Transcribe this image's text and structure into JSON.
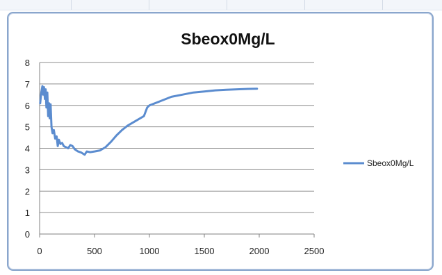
{
  "chart_data": {
    "type": "line",
    "title": "Sbeox0Mg/L",
    "xlabel": "",
    "ylabel": "",
    "xlim": [
      0,
      2500
    ],
    "ylim": [
      0,
      8
    ],
    "x_ticks": [
      0,
      500,
      1000,
      1500,
      2000,
      2500
    ],
    "y_ticks": [
      0,
      1,
      2,
      3,
      4,
      5,
      6,
      7,
      8
    ],
    "grid": "horizontal",
    "legend_position": "right",
    "color": "#5b8ccf",
    "series": [
      {
        "name": "Sbeox0Mg/L",
        "points": [
          [
            5,
            6.1
          ],
          [
            15,
            6.6
          ],
          [
            25,
            6.9
          ],
          [
            32,
            6.5
          ],
          [
            40,
            6.85
          ],
          [
            48,
            6.3
          ],
          [
            55,
            6.75
          ],
          [
            62,
            5.9
          ],
          [
            70,
            6.6
          ],
          [
            78,
            5.5
          ],
          [
            86,
            6.1
          ],
          [
            92,
            5.4
          ],
          [
            100,
            6.05
          ],
          [
            108,
            5.0
          ],
          [
            118,
            4.7
          ],
          [
            130,
            4.85
          ],
          [
            142,
            4.45
          ],
          [
            155,
            4.55
          ],
          [
            165,
            4.1
          ],
          [
            175,
            4.4
          ],
          [
            190,
            4.2
          ],
          [
            205,
            4.25
          ],
          [
            220,
            4.1
          ],
          [
            240,
            4.05
          ],
          [
            260,
            4.0
          ],
          [
            280,
            4.15
          ],
          [
            300,
            4.1
          ],
          [
            320,
            3.95
          ],
          [
            350,
            3.85
          ],
          [
            380,
            3.8
          ],
          [
            410,
            3.7
          ],
          [
            430,
            3.85
          ],
          [
            460,
            3.82
          ],
          [
            500,
            3.85
          ],
          [
            550,
            3.9
          ],
          [
            600,
            4.05
          ],
          [
            650,
            4.3
          ],
          [
            700,
            4.6
          ],
          [
            750,
            4.85
          ],
          [
            800,
            5.05
          ],
          [
            850,
            5.2
          ],
          [
            900,
            5.35
          ],
          [
            950,
            5.5
          ],
          [
            980,
            5.9
          ],
          [
            1000,
            6.0
          ],
          [
            1100,
            6.2
          ],
          [
            1200,
            6.4
          ],
          [
            1300,
            6.5
          ],
          [
            1400,
            6.6
          ],
          [
            1500,
            6.65
          ],
          [
            1600,
            6.7
          ],
          [
            1700,
            6.73
          ],
          [
            1800,
            6.75
          ],
          [
            1900,
            6.77
          ],
          [
            1980,
            6.78
          ]
        ]
      }
    ]
  }
}
